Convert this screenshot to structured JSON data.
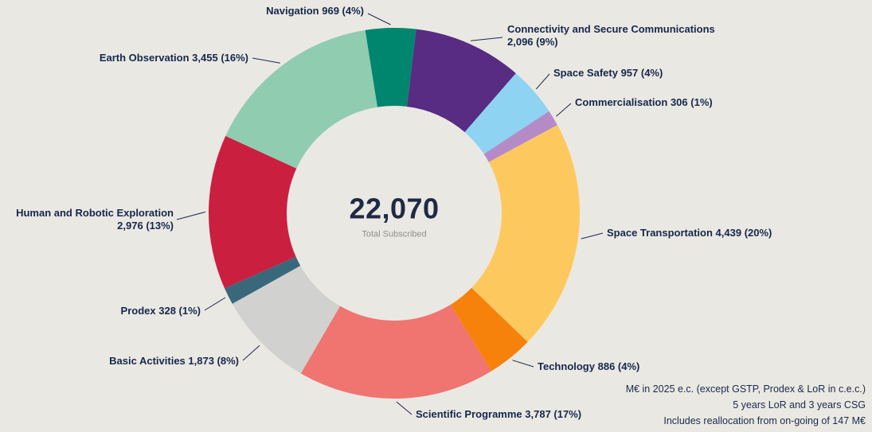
{
  "chart_data": {
    "type": "pie",
    "donut": true,
    "title": "",
    "center_total": "22,070",
    "center_caption": "Total Subscribed",
    "start_angle_deg": -9,
    "slices": [
      {
        "id": "navigation",
        "label": "Navigation",
        "value": 969,
        "value_label": "969 (4%)",
        "pct": 4,
        "color": "#00866e"
      },
      {
        "id": "connectivity",
        "label": "Connectivity and Secure Communications",
        "value": 2096,
        "value_label": "2,096 (9%)",
        "pct": 9,
        "color": "#572c82"
      },
      {
        "id": "space-safety",
        "label": "Space Safety",
        "value": 957,
        "value_label": "957 (4%)",
        "pct": 4,
        "color": "#8ed3f2"
      },
      {
        "id": "commercialisation",
        "label": "Commercialisation",
        "value": 306,
        "value_label": "306 (1%)",
        "pct": 1,
        "color": "#b58bc7"
      },
      {
        "id": "space-transportation",
        "label": "Space Transportation",
        "value": 4439,
        "value_label": "4,439 (20%)",
        "pct": 20,
        "color": "#fdc95f"
      },
      {
        "id": "technology",
        "label": "Technology",
        "value": 886,
        "value_label": "886 (4%)",
        "pct": 4,
        "color": "#f6820c"
      },
      {
        "id": "scientific-programme",
        "label": "Scientific Programme",
        "value": 3787,
        "value_label": "3,787 (17%)",
        "pct": 17,
        "color": "#f07470"
      },
      {
        "id": "basic-activities",
        "label": "Basic Activities",
        "value": 1873,
        "value_label": "1,873 (8%)",
        "pct": 8,
        "color": "#d1d1cf"
      },
      {
        "id": "prodex",
        "label": "Prodex",
        "value": 328,
        "value_label": "328 (1%)",
        "pct": 1,
        "color": "#3a687b"
      },
      {
        "id": "human-robotic-exploration",
        "label": "Human and Robotic Exploration",
        "value": 2976,
        "value_label": "2,976 (13%)",
        "pct": 13,
        "color": "#cb1f3f"
      },
      {
        "id": "earth-observation",
        "label": "Earth Observation",
        "value": 3455,
        "value_label": "3,455 (16%)",
        "pct": 16,
        "color": "#90ccb0"
      }
    ],
    "footnotes": [
      "M€ in 2025 e.c. (except GSTP, Prodex & LoR in c.e.c.)",
      "5 years LoR and 3 years CSG",
      "Includes reallocation from on-going of 147 M€"
    ]
  },
  "colors": {
    "background": "#eae8e2",
    "label_text": "#15274d",
    "leader_line": "#1b2a4d",
    "total_text": "#1f2a44",
    "caption_text": "#8f8f8f"
  }
}
